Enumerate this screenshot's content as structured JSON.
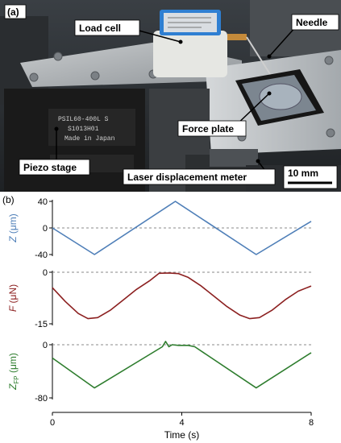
{
  "photo": {
    "panel_label": "(a)",
    "labels": {
      "load_cell": "Load cell",
      "needle": "Needle",
      "force_plate": "Force plate",
      "piezo_stage": "Piezo stage",
      "laser_meter": "Laser displacement meter",
      "scale_bar": "10 mm"
    },
    "device_text": {
      "piezo_line1": "PSIL60-400L S",
      "piezo_line2": "S1013H01",
      "piezo_line3": "Made in Japan"
    }
  },
  "chart_data": [
    {
      "type": "line",
      "panel_label": "(b)",
      "ylabel": "Z (μm)",
      "ylabel_parts": {
        "sym": "Z",
        "unit": " (μm)"
      },
      "color": "#4f7fb8",
      "ylim": [
        -40,
        40
      ],
      "yticks": [
        "40",
        "0",
        "-40"
      ],
      "ytick_values": [
        40,
        0,
        -40
      ],
      "reference_line": 0,
      "x": [
        0,
        1.3,
        3.8,
        6.3,
        8.0
      ],
      "y": [
        0,
        -40,
        40,
        -40,
        10
      ]
    },
    {
      "type": "line",
      "ylabel": "F (μN)",
      "ylabel_parts": {
        "sym": "F",
        "unit": " (μN)"
      },
      "color": "#8c2020",
      "ylim": [
        -15,
        0
      ],
      "yticks": [
        "0",
        "-15"
      ],
      "ytick_values": [
        0,
        -15
      ],
      "reference_line": 0,
      "x": [
        0,
        0.4,
        0.8,
        1.1,
        1.4,
        1.8,
        2.2,
        2.6,
        3.0,
        3.3,
        3.6,
        3.9,
        4.2,
        4.6,
        5.0,
        5.4,
        5.8,
        6.1,
        6.4,
        6.8,
        7.2,
        7.6,
        8.0
      ],
      "y": [
        -4.5,
        -8.5,
        -12,
        -13.5,
        -13.2,
        -11,
        -8,
        -5,
        -2.5,
        -0.3,
        -0.2,
        -0.4,
        -1.5,
        -4,
        -7,
        -10,
        -12.5,
        -13.5,
        -13.2,
        -11,
        -8,
        -5.5,
        -4
      ]
    },
    {
      "type": "line",
      "ylabel": "ZFP (μm)",
      "ylabel_parts": {
        "sym": "Z",
        "sub": "FP",
        "unit": " (μm)"
      },
      "color": "#2e7d2e",
      "ylim": [
        -80,
        0
      ],
      "yticks": [
        "0",
        "-80"
      ],
      "ytick_values": [
        0,
        -80
      ],
      "reference_line": 0,
      "x": [
        0,
        1.3,
        3.4,
        3.5,
        3.6,
        3.7,
        3.9,
        4.2,
        4.4,
        6.3,
        8.0
      ],
      "y": [
        -20,
        -65,
        -3,
        5,
        -3,
        0,
        -1,
        -1,
        -3,
        -65,
        -12
      ]
    }
  ],
  "x_axis": {
    "label": "Time (s)",
    "ticks": [
      "0",
      "4",
      "8"
    ],
    "tick_values": [
      0,
      4,
      8
    ],
    "xlim": [
      0,
      8
    ]
  }
}
